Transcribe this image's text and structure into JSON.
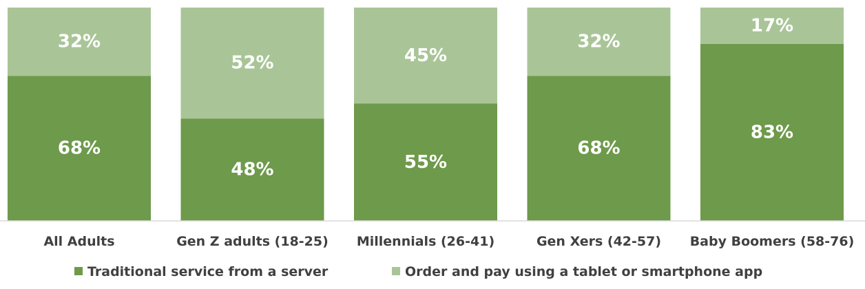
{
  "chart_data": {
    "type": "bar",
    "stacked": true,
    "percent_stacked": true,
    "categories": [
      "All Adults",
      "Gen Z adults (18-25)",
      "Millennials (26-41)",
      "Gen Xers (42-57)",
      "Baby Boomers (58-76)"
    ],
    "series": [
      {
        "name": "Traditional service from a server",
        "values": [
          68,
          48,
          55,
          68,
          83
        ],
        "labels": [
          "68%",
          "48%",
          "55%",
          "68%",
          "83%"
        ],
        "color": "#6e9a4b"
      },
      {
        "name": "Order and pay using a tablet or smartphone app",
        "values": [
          32,
          52,
          45,
          32,
          17
        ],
        "labels": [
          "32%",
          "52%",
          "45%",
          "32%",
          "17%"
        ],
        "color": "#a9c597"
      }
    ],
    "ylim": [
      0,
      100
    ],
    "grid": false,
    "legend_position": "bottom"
  }
}
